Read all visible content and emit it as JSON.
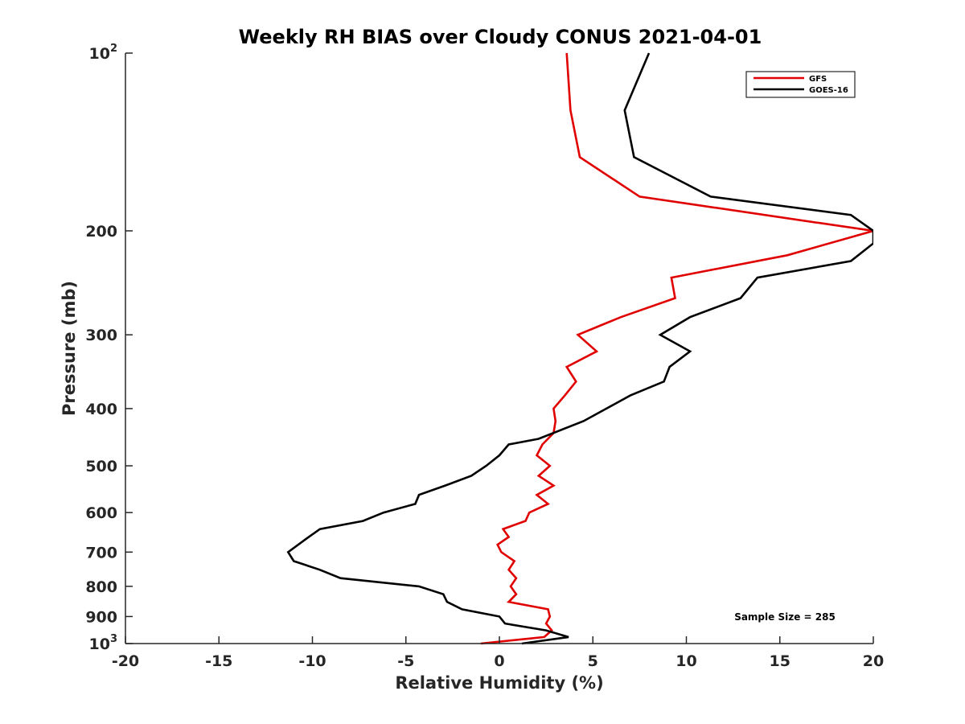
{
  "chart_data": {
    "type": "line",
    "title": "Weekly RH BIAS over Cloudy CONUS 2021-04-01",
    "xlabel": "Relative Humidity (%)",
    "ylabel": "Pressure (mb)",
    "xlim": [
      -20,
      20
    ],
    "ylim": [
      100,
      1000
    ],
    "y_scale": "log",
    "y_reversed": true,
    "x_ticks": [
      "-20",
      "-15",
      "-10",
      "-5",
      "0",
      "5",
      "10",
      "15",
      "20"
    ],
    "y_ticks": [
      {
        "value": 100,
        "label": "10",
        "sup": "2"
      },
      {
        "value": 200,
        "label": "200"
      },
      {
        "value": 300,
        "label": "300"
      },
      {
        "value": 400,
        "label": "400"
      },
      {
        "value": 500,
        "label": "500"
      },
      {
        "value": 600,
        "label": "600"
      },
      {
        "value": 700,
        "label": "700"
      },
      {
        "value": 800,
        "label": "800"
      },
      {
        "value": 900,
        "label": "900"
      },
      {
        "value": 1000,
        "label": "10",
        "sup": "3"
      }
    ],
    "legend_position": "top-right",
    "annotation": "Sample Size = 285",
    "series": [
      {
        "name": "GFS",
        "color": "#e00000",
        "x": [
          3.6,
          3.8,
          4.3,
          7.5,
          20,
          15.4,
          9.2,
          9.4,
          6.5,
          4.2,
          5.2,
          3.6,
          4.1,
          3.5,
          2.9,
          3.0,
          2.9,
          2.3,
          2.0,
          2.7,
          2.1,
          2.9,
          2.0,
          2.6,
          1.6,
          1.4,
          0.2,
          0.5,
          -0.1,
          0.1,
          0.8,
          0.5,
          0.9,
          0.6,
          0.9,
          0.5,
          2.6,
          2.7,
          2.5,
          2.8,
          2.4,
          -1.0
        ],
        "y": [
          100,
          125,
          150,
          175,
          200,
          220,
          240,
          260,
          280,
          300,
          320,
          340,
          360,
          380,
          400,
          420,
          440,
          460,
          480,
          500,
          520,
          540,
          560,
          580,
          600,
          620,
          640,
          660,
          680,
          700,
          725,
          750,
          775,
          800,
          825,
          850,
          875,
          900,
          925,
          950,
          975,
          1000
        ]
      },
      {
        "name": "GOES-16",
        "color": "#000000",
        "x": [
          8.0,
          6.7,
          7.2,
          11.3,
          18.8,
          20,
          20,
          18.8,
          13.8,
          12.9,
          10.2,
          8.6,
          10.2,
          9.1,
          8.8,
          7.0,
          4.5,
          2.1,
          0.5,
          0.0,
          -0.7,
          -1.5,
          -2.9,
          -4.3,
          -4.5,
          -6.2,
          -7.3,
          -9.6,
          -10.2,
          -11.3,
          -11.0,
          -9.6,
          -8.5,
          -4.3,
          -3.0,
          -2.8,
          -2.0,
          0.0,
          0.3,
          2.5,
          3.7,
          1.2
        ],
        "y": [
          100,
          125,
          150,
          175,
          188,
          200,
          210,
          225,
          240,
          260,
          280,
          300,
          320,
          340,
          360,
          380,
          420,
          450,
          460,
          480,
          500,
          520,
          540,
          560,
          580,
          600,
          620,
          640,
          660,
          700,
          725,
          750,
          775,
          800,
          825,
          850,
          875,
          900,
          925,
          950,
          975,
          1000
        ]
      }
    ]
  }
}
